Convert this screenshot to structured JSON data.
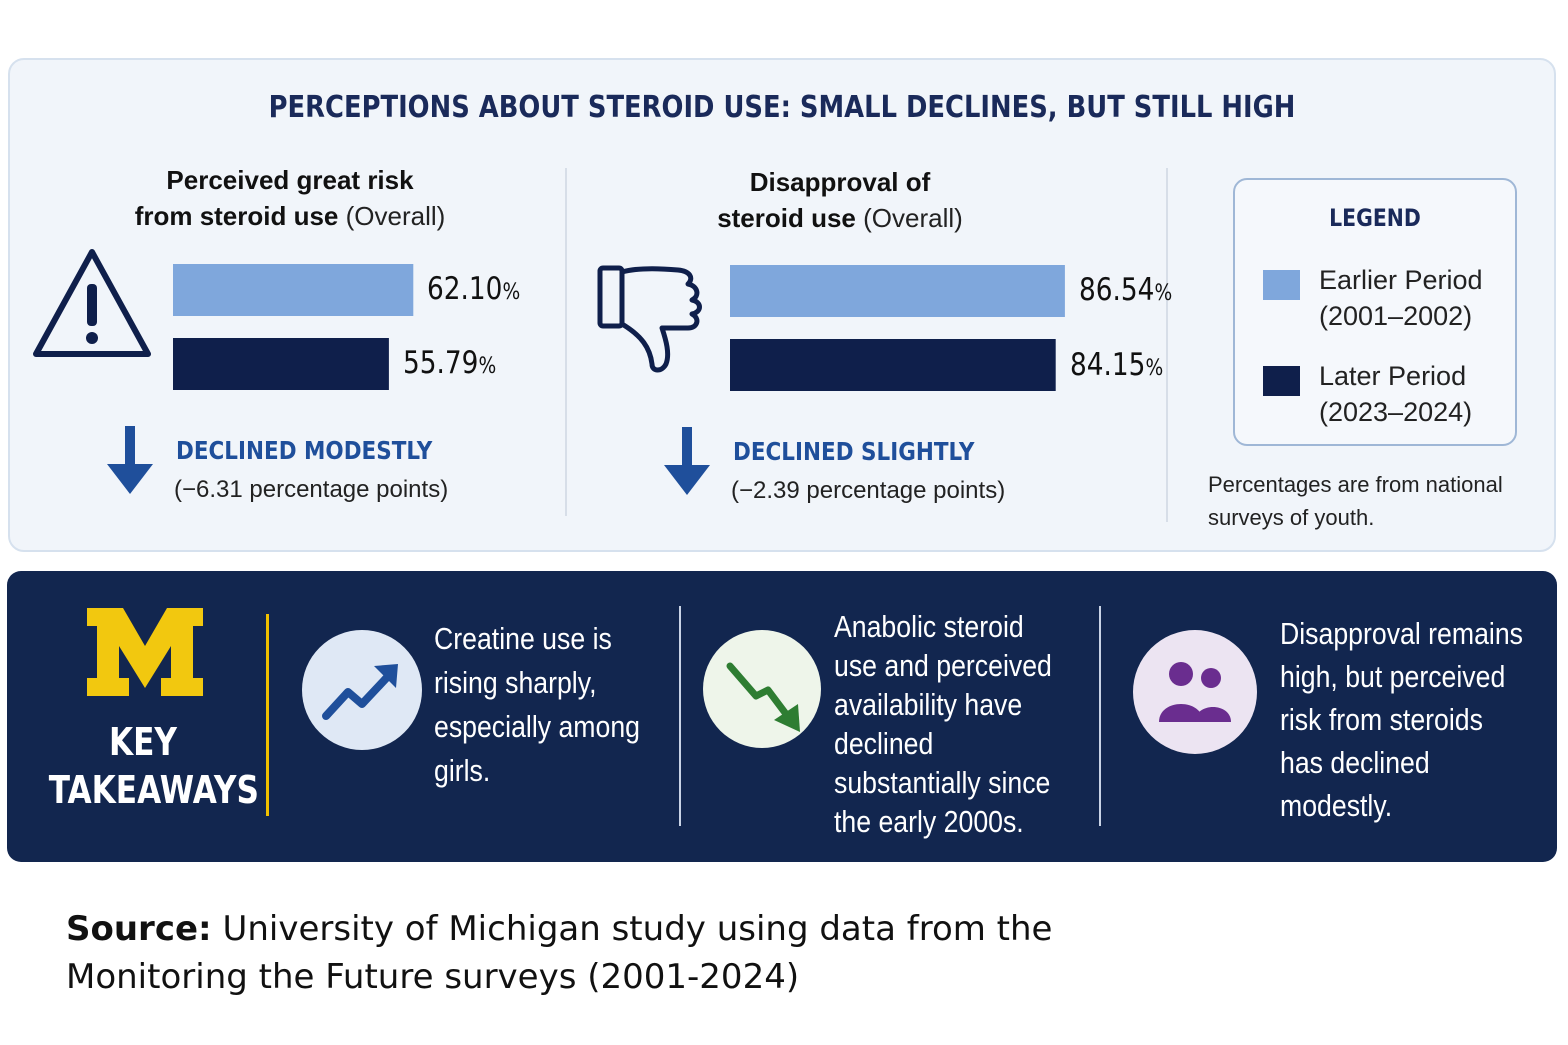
{
  "headline": "PERCEPTIONS ABOUT STEROID USE: SMALL DECLINES, BUT STILL HIGH",
  "colors": {
    "earlier": "#7fa7dc",
    "later": "#0f1f4b",
    "accent": "#1f4f9b",
    "panel": "#12264f",
    "michigan_maize": "#f2c80f"
  },
  "chart_data": [
    {
      "type": "bar",
      "title_bold": "Perceived great risk from steroid use",
      "title_line1": "Perceived great risk",
      "title_line2_bold": "from steroid use",
      "title_suffix": "(Overall)",
      "icon": "warning-triangle-icon",
      "series": [
        {
          "name": "Earlier Period (2001–2002)",
          "value": 62.1,
          "label_num": "62.10",
          "label_unit": "%"
        },
        {
          "name": "Later Period (2023–2024)",
          "value": 55.79,
          "label_num": "55.79",
          "label_unit": "%"
        }
      ],
      "xlim": [
        0,
        100
      ],
      "change_title": "DECLINED MODESTLY",
      "change_detail": "(−6.31 percentage points)"
    },
    {
      "type": "bar",
      "title_line1": "Disapproval of",
      "title_line2_bold": "steroid use",
      "title_suffix": "(Overall)",
      "icon": "thumbs-down-icon",
      "series": [
        {
          "name": "Earlier Period (2001–2002)",
          "value": 86.54,
          "label_num": "86.54",
          "label_unit": "%"
        },
        {
          "name": "Later Period (2023–2024)",
          "value": 84.15,
          "label_num": "84.15",
          "label_unit": "%"
        }
      ],
      "xlim": [
        0,
        100
      ],
      "change_title": "DECLINED SLIGHTLY",
      "change_detail": "(−2.39 percentage points)"
    }
  ],
  "legend": {
    "title": "LEGEND",
    "items": [
      {
        "line1": "Earlier Period",
        "line2": "(2001–2002)",
        "color": "#7fa7dc"
      },
      {
        "line1": "Later Period",
        "line2": "(2023–2024)",
        "color": "#0f1f4b"
      }
    ],
    "note": "Percentages are from national surveys of youth."
  },
  "key_takeaways": {
    "logo": "M",
    "label_line1": "KEY",
    "label_line2": "TAKEAWAYS",
    "items": [
      {
        "icon": "trend-up-arrow-icon",
        "lines": [
          "Creatine use is",
          "rising sharply,",
          "especially among",
          "girls."
        ]
      },
      {
        "icon": "trend-down-arrow-icon",
        "lines": [
          "Anabolic steroid",
          "use and perceived",
          "availability have",
          "declined",
          "substantially since",
          "the early 2000s."
        ]
      },
      {
        "icon": "people-icon",
        "lines": [
          "Disapproval remains",
          "high, but perceived",
          "risk from steroids",
          "has declined",
          "modestly."
        ]
      }
    ]
  },
  "source": {
    "label": "Source:",
    "text": "University of Michigan study using data from the",
    "text2": "Monitoring the Future surveys (2001-2024)"
  }
}
